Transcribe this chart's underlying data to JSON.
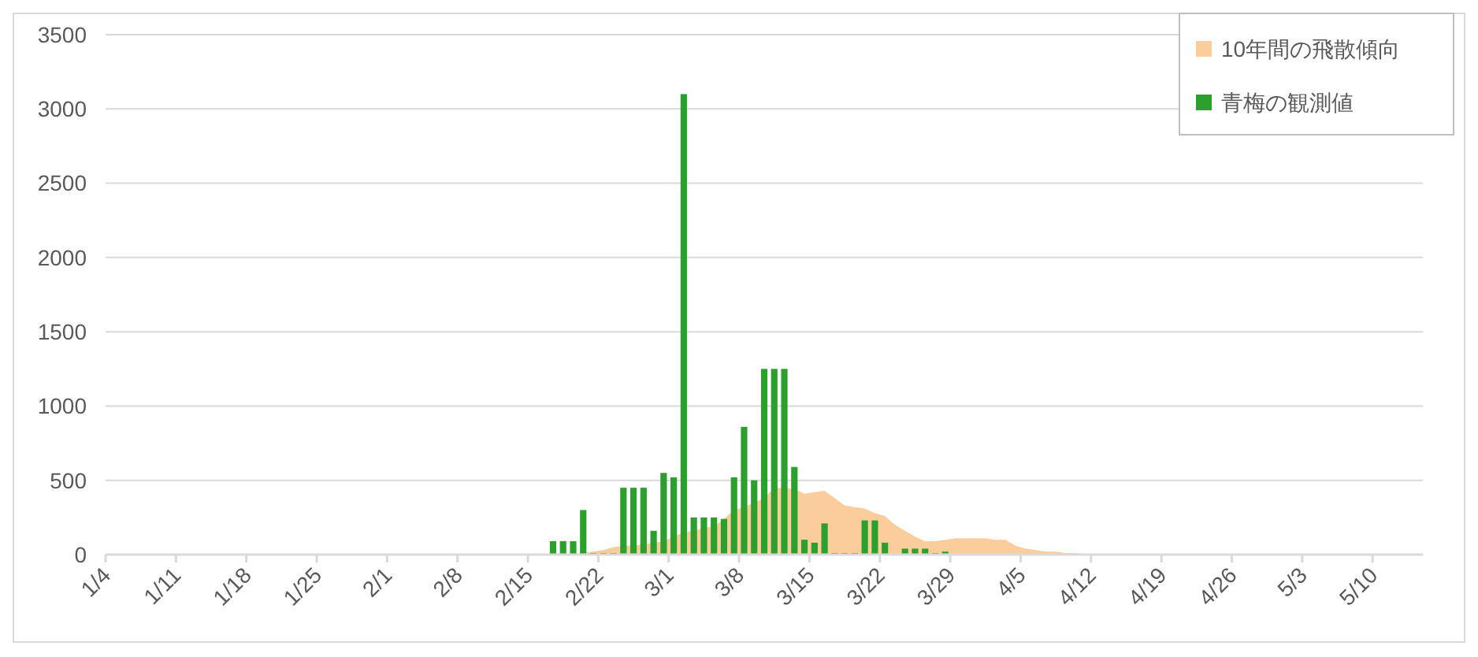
{
  "chart_data": {
    "type": "bar",
    "legend": "top right",
    "grid": "y",
    "ylim": [
      0,
      3500
    ],
    "yticks": [
      0,
      500,
      1000,
      1500,
      2000,
      2500,
      3000,
      3500
    ],
    "xlim": [
      "--01-04",
      "--05-15"
    ],
    "xticks": [
      {
        "value": "--01-04",
        "label": "1/4"
      },
      {
        "value": "--01-11",
        "label": "1/11"
      },
      {
        "value": "--01-18",
        "label": "1/18"
      },
      {
        "value": "--01-25",
        "label": "1/25"
      },
      {
        "value": "--02-01",
        "label": "2/1"
      },
      {
        "value": "--02-08",
        "label": "2/8"
      },
      {
        "value": "--02-15",
        "label": "2/15"
      },
      {
        "value": "--02-22",
        "label": "2/22"
      },
      {
        "value": "--03-01",
        "label": "3/1"
      },
      {
        "value": "--03-08",
        "label": "3/8"
      },
      {
        "value": "--03-15",
        "label": "3/15"
      },
      {
        "value": "--03-22",
        "label": "3/22"
      },
      {
        "value": "--03-29",
        "label": "3/29"
      },
      {
        "value": "--04-05",
        "label": "4/5"
      },
      {
        "value": "--04-12",
        "label": "4/12"
      },
      {
        "value": "--04-19",
        "label": "4/19"
      },
      {
        "value": "--04-26",
        "label": "4/26"
      },
      {
        "value": "--05-03",
        "label": "5/3"
      },
      {
        "value": "--05-10",
        "label": "5/10"
      }
    ],
    "series": [
      {
        "name": "10年間の飛散傾向",
        "type": "area",
        "color": "#fbcc9c",
        "x": [
          "--02-19",
          "--02-20",
          "--02-21",
          "--02-22",
          "--02-23",
          "--02-24",
          "--02-25",
          "--02-26",
          "--02-27",
          "--02-28",
          "--03-01",
          "--03-02",
          "--03-03",
          "--03-04",
          "--03-05",
          "--03-06",
          "--03-07",
          "--03-08",
          "--03-09",
          "--03-10",
          "--03-11",
          "--03-12",
          "--03-13",
          "--03-14",
          "--03-15",
          "--03-16",
          "--03-17",
          "--03-18",
          "--03-19",
          "--03-20",
          "--03-21",
          "--03-22",
          "--03-23",
          "--03-24",
          "--03-25",
          "--03-26",
          "--03-27",
          "--03-28",
          "--03-29",
          "--03-30",
          "--03-31",
          "--04-01",
          "--04-02",
          "--04-03",
          "--04-04",
          "--04-05",
          "--04-06",
          "--04-07",
          "--04-08",
          "--04-09",
          "--04-10",
          "--04-11"
        ],
        "values": [
          0,
          10,
          20,
          30,
          50,
          60,
          60,
          70,
          80,
          90,
          120,
          150,
          160,
          180,
          190,
          240,
          300,
          320,
          350,
          380,
          450,
          450,
          440,
          410,
          420,
          430,
          380,
          330,
          320,
          310,
          280,
          260,
          200,
          160,
          120,
          90,
          90,
          100,
          110,
          110,
          110,
          110,
          100,
          100,
          60,
          40,
          30,
          20,
          20,
          10,
          10,
          0
        ]
      },
      {
        "name": "青梅の観測値",
        "color": "#2ca02c",
        "x": [
          "--02-17",
          "--02-18",
          "--02-19",
          "--02-20",
          "--02-21",
          "--02-22",
          "--02-23",
          "--02-24",
          "--02-25",
          "--02-26",
          "--02-27",
          "--02-28",
          "--03-01",
          "--03-02",
          "--03-03",
          "--03-04",
          "--03-05",
          "--03-06",
          "--03-07",
          "--03-08",
          "--03-09",
          "--03-10",
          "--03-11",
          "--03-12",
          "--03-13",
          "--03-14",
          "--03-15",
          "--03-16",
          "--03-17",
          "--03-18",
          "--03-19",
          "--03-20",
          "--03-21",
          "--03-22",
          "--03-23",
          "--03-24",
          "--03-25",
          "--03-26",
          "--03-27",
          "--03-28"
        ],
        "values": [
          90,
          90,
          90,
          300,
          10,
          10,
          10,
          450,
          450,
          450,
          160,
          550,
          520,
          3100,
          250,
          250,
          250,
          240,
          520,
          860,
          500,
          1250,
          1250,
          1250,
          590,
          100,
          80,
          210,
          10,
          10,
          10,
          230,
          230,
          80,
          0,
          40,
          40,
          40,
          10,
          20
        ]
      }
    ]
  }
}
